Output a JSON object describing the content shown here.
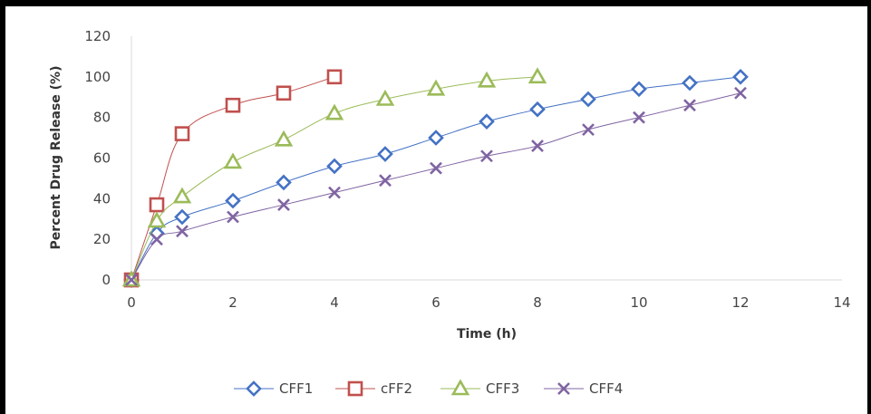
{
  "chart_data": {
    "type": "line",
    "title": "",
    "xlabel": "Time (h)",
    "ylabel": "Percent Drug Release (%)",
    "xlim": [
      0,
      14
    ],
    "ylim": [
      0,
      120
    ],
    "x_ticks": [
      "0",
      "2",
      "4",
      "6",
      "8",
      "10",
      "12",
      "14"
    ],
    "y_ticks": [
      "0",
      "20",
      "40",
      "60",
      "80",
      "100",
      "120"
    ],
    "grid": false,
    "legend_position": "bottom",
    "series": [
      {
        "name": "CFF1",
        "color": "#4472C4",
        "marker": "diamond",
        "x": [
          0,
          0.5,
          1,
          2,
          3,
          4,
          5,
          6,
          7,
          8,
          9,
          10,
          11,
          12
        ],
        "y": [
          0,
          23,
          31,
          39,
          48,
          56,
          62,
          70,
          78,
          84,
          89,
          94,
          97,
          100
        ]
      },
      {
        "name": "cFF2",
        "color": "#C0504D",
        "marker": "square",
        "x": [
          0,
          0.5,
          1,
          2,
          3,
          4
        ],
        "y": [
          0,
          37,
          72,
          86,
          92,
          100
        ]
      },
      {
        "name": "CFF3",
        "color": "#9BBB59",
        "marker": "triangle",
        "x": [
          0,
          0.5,
          1,
          2,
          3,
          4,
          5,
          6,
          7,
          8
        ],
        "y": [
          0,
          29,
          41,
          58,
          69,
          82,
          89,
          94,
          98,
          100
        ]
      },
      {
        "name": "CFF4",
        "color": "#8064A2",
        "marker": "x",
        "x": [
          0,
          0.5,
          1,
          2,
          3,
          4,
          5,
          6,
          7,
          8,
          9,
          10,
          11,
          12
        ],
        "y": [
          0,
          20,
          24,
          31,
          37,
          43,
          49,
          55,
          61,
          66,
          74,
          80,
          86,
          92
        ]
      }
    ]
  }
}
